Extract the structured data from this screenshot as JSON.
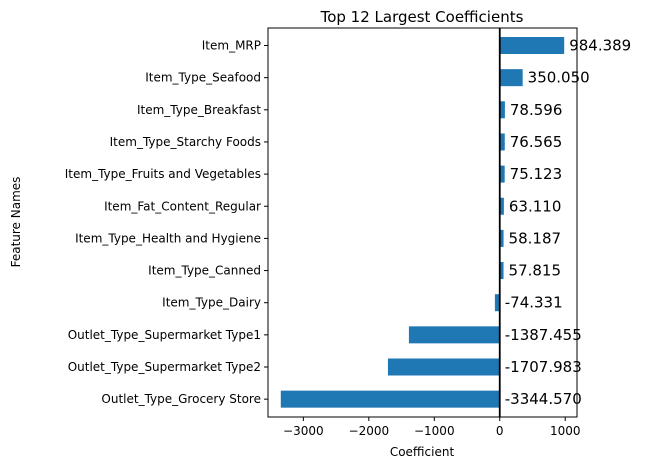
{
  "chart_data": {
    "type": "bar",
    "orientation": "horizontal",
    "title": "Top 12 Largest Coefficients",
    "xlabel": "Coefficient",
    "ylabel": "Feature Names",
    "xlim": [
      -3540,
      1180
    ],
    "xticks": [
      {
        "value": -3000,
        "label": "−3000"
      },
      {
        "value": -2000,
        "label": "−2000"
      },
      {
        "value": -1000,
        "label": "−1000"
      },
      {
        "value": 0,
        "label": "0"
      },
      {
        "value": 1000,
        "label": "1000"
      }
    ],
    "categories": [
      "Item_MRP",
      "Item_Type_Seafood",
      "Item_Type_Breakfast",
      "Item_Type_Starchy Foods",
      "Item_Type_Fruits and Vegetables",
      "Item_Fat_Content_Regular",
      "Item_Type_Health and Hygiene",
      "Item_Type_Canned",
      "Item_Type_Dairy",
      "Outlet_Type_Supermarket Type1",
      "Outlet_Type_Supermarket Type2",
      "Outlet_Type_Grocery Store"
    ],
    "values": [
      984.389,
      350.05,
      78.596,
      76.565,
      75.123,
      63.11,
      58.187,
      57.815,
      -74.331,
      -1387.455,
      -1707.983,
      -3344.57
    ],
    "value_labels": [
      "984.389",
      "350.050",
      "78.596",
      "76.565",
      "75.123",
      "63.110",
      "58.187",
      "57.815",
      "-74.331",
      "-1387.455",
      "-1707.983",
      "-3344.570"
    ],
    "zero_line": true,
    "grid": false,
    "legend": "none",
    "bar_color": "#1f77b4",
    "zero_line_color": "#000000"
  }
}
